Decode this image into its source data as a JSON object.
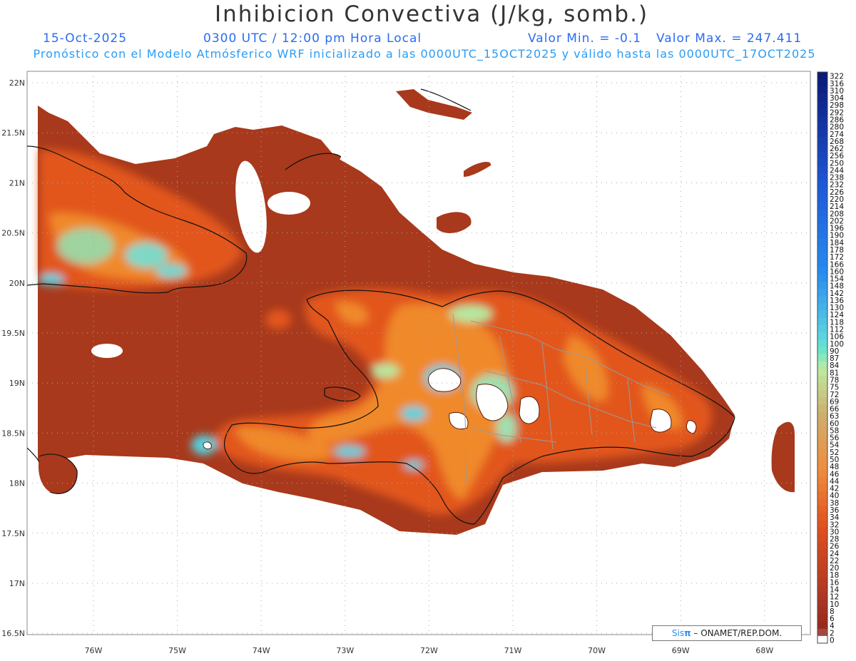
{
  "header": {
    "title": "Inhibicion Convectiva (J/kg, somb.)",
    "date": "15-Oct-2025",
    "time": "0300 UTC / 12:00 pm Hora Local",
    "min_label": "Valor Min. = -0.1",
    "max_label": "Valor Max. = 247.411",
    "subtitle": "Pronóstico con el Modelo Atmósferico WRF inicializado a las 0000UTC_15OCT2025 y válido hasta las  0000UTC_17OCT2025"
  },
  "map": {
    "lat_labels": [
      "22N",
      "21.5N",
      "21N",
      "20.5N",
      "20N",
      "19.5N",
      "19N",
      "18.5N",
      "18N",
      "17.5N",
      "17N",
      "16.5N"
    ],
    "lon_labels": [
      "76W",
      "75W",
      "74W",
      "73W",
      "72W",
      "71W",
      "70W",
      "69W",
      "68W"
    ],
    "colors": {
      "field_base": "#a8391c",
      "field_warm": "#e2561a",
      "field_orange": "#f0892c",
      "field_light": "#b5e8a0",
      "field_cyan": "#55d2df",
      "coast": "#111111",
      "border": "#999999",
      "grid": "#aaaaaa"
    }
  },
  "colorbar": {
    "labels": [
      "322",
      "316",
      "310",
      "304",
      "298",
      "292",
      "286",
      "280",
      "274",
      "268",
      "262",
      "256",
      "250",
      "244",
      "238",
      "232",
      "226",
      "220",
      "214",
      "208",
      "202",
      "196",
      "190",
      "184",
      "178",
      "172",
      "166",
      "160",
      "154",
      "148",
      "142",
      "136",
      "130",
      "124",
      "118",
      "112",
      "106",
      "100",
      "90",
      "87",
      "84",
      "81",
      "78",
      "75",
      "72",
      "69",
      "66",
      "63",
      "60",
      "58",
      "56",
      "54",
      "52",
      "50",
      "48",
      "46",
      "44",
      "42",
      "40",
      "38",
      "36",
      "34",
      "32",
      "30",
      "28",
      "26",
      "24",
      "22",
      "20",
      "18",
      "16",
      "14",
      "12",
      "10",
      "8",
      "6",
      "4",
      "2",
      "0"
    ]
  },
  "credit": {
    "sis": "Sis",
    "pi": "π",
    "rest": "– ONAMET/REP.DOM."
  }
}
